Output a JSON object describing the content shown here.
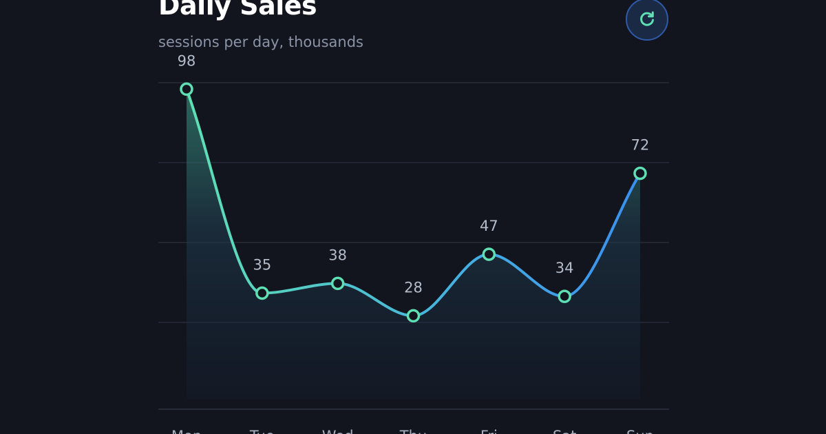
{
  "header": {
    "title": "Daily Sales",
    "subtitle": "sessions per day, thousands"
  },
  "refresh_button": {
    "icon": "refresh-icon",
    "color": "#5fe0b4"
  },
  "chart_data": {
    "type": "area",
    "categories": [
      "Mon",
      "Tue",
      "Wed",
      "Thu",
      "Fri",
      "Sat",
      "Sun"
    ],
    "series": [
      {
        "values": [
          98,
          35,
          38,
          28,
          47,
          34,
          72
        ]
      }
    ],
    "ylim": [
      0,
      100
    ],
    "grid": true,
    "colors": {
      "line_start": "#5fe0b4",
      "line_end": "#3a8ff0",
      "marker": "#5fe0b4",
      "grid": "#262c3a"
    }
  }
}
